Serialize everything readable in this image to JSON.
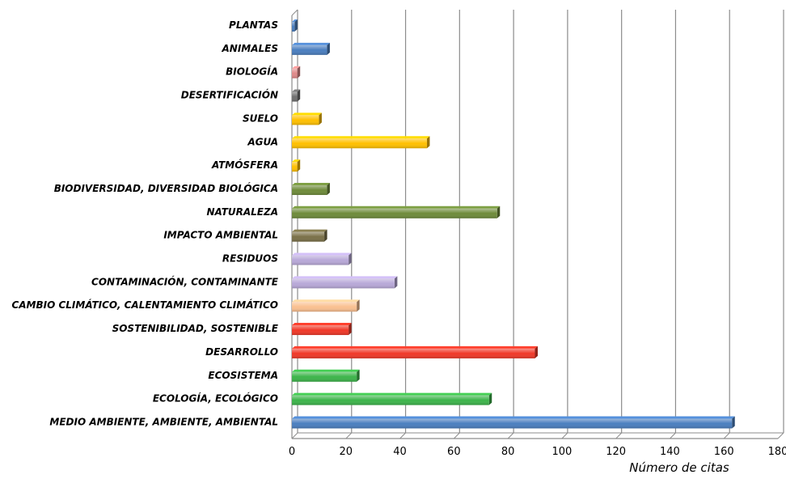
{
  "chart_data": {
    "type": "bar",
    "orientation": "horizontal",
    "xlabel": "Número de citas",
    "ylabel": "",
    "xlim": [
      0,
      180
    ],
    "xticks": [
      "0",
      "20",
      "40",
      "60",
      "80",
      "100",
      "120",
      "140",
      "160",
      "180"
    ],
    "grid": "vertical",
    "categories": [
      "PLANTAS",
      "ANIMALES",
      "BIOLOGÍA",
      "DESERTIFICACIÓN",
      "SUELO",
      "AGUA",
      "ATMÓSFERA",
      "BIODIVERSIDAD, DIVERSIDAD BIOLÓGICA",
      "NATURALEZA",
      "IMPACTO AMBIENTAL",
      "RESIDUOS",
      "CONTAMINACIÓN, CONTAMINANTE",
      "CAMBIO CLIMÁTICO, CALENTAMIENTO CLIMÁTICO",
      "SOSTENIBILIDAD, SOSTENIBLE",
      "DESARROLLO",
      "ECOSISTEMA",
      "ECOLOGÍA, ECOLÓGICO",
      "MEDIO AMBIENTE, AMBIENTE, AMBIENTAL"
    ],
    "values": [
      1,
      13,
      2,
      2,
      10,
      50,
      2,
      13,
      76,
      12,
      21,
      38,
      24,
      21,
      90,
      24,
      73,
      163
    ],
    "colors": [
      "#4a7ebf",
      "#4a7ebf",
      "#e08a8a",
      "#707070",
      "#ffc000",
      "#ffc000",
      "#ffc000",
      "#6e8b3a",
      "#6e8b3a",
      "#7a7048",
      "#b8a8d8",
      "#b8a8d8",
      "#fac090",
      "#f03828",
      "#f03828",
      "#3cb44a",
      "#3cb44a",
      "#4a7ebf"
    ]
  }
}
